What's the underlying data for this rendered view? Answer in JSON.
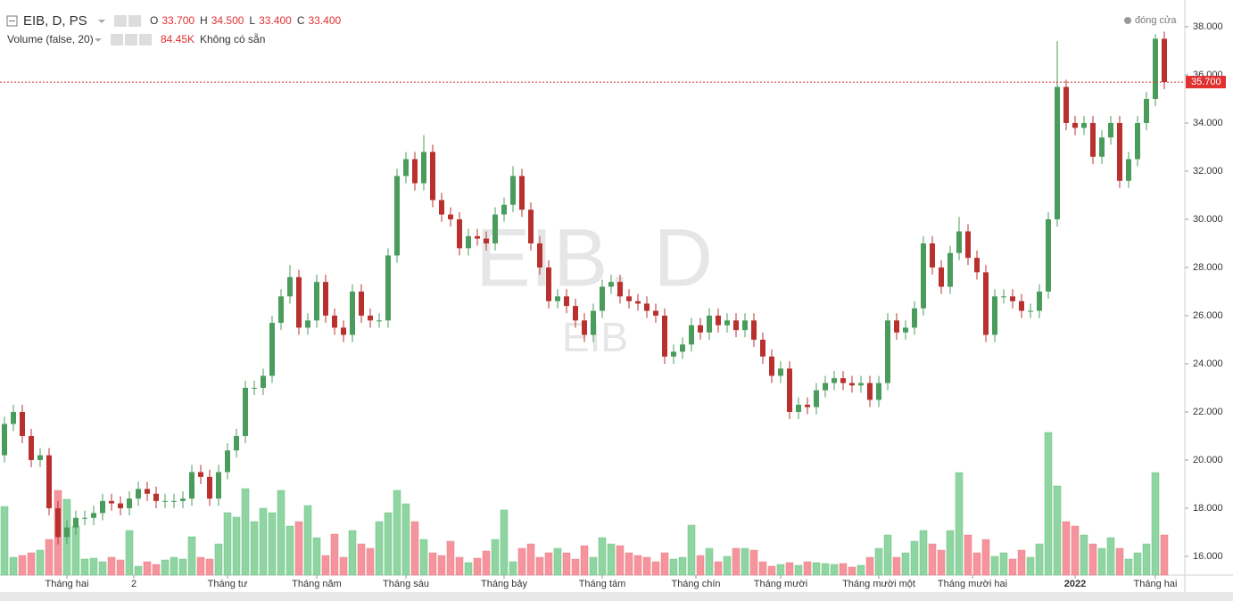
{
  "header": {
    "symbol": "EIB, D, PS",
    "ohlc": [
      {
        "key": "O",
        "text": "33.700"
      },
      {
        "key": "H",
        "text": "34.500"
      },
      {
        "key": "L",
        "text": "33.400"
      },
      {
        "key": "C",
        "text": "33.400"
      }
    ],
    "volume_label": "Volume (false, 20)",
    "volume_value": "84.45K",
    "volume_note": "Không có sẵn",
    "status": "đóng cửa"
  },
  "chart_data": {
    "type": "candlestick",
    "watermark": "EIB, D",
    "watermark_sub": "EIB",
    "up_color": "#4a9c5d",
    "down_color": "#b8312f",
    "volume_up_color": "#8fd5a2",
    "volume_down_color": "#f5949c",
    "ylim": [
      15.22,
      39.11
    ],
    "grid": false,
    "yticks": [
      {
        "value": 16,
        "label": "16.000"
      },
      {
        "value": 18,
        "label": "18.000"
      },
      {
        "value": 20,
        "label": "20.000"
      },
      {
        "value": 22,
        "label": "22.000"
      },
      {
        "value": 24,
        "label": "24.000"
      },
      {
        "value": 26,
        "label": "26.000"
      },
      {
        "value": 28,
        "label": "28.000"
      },
      {
        "value": 30,
        "label": "30.000"
      },
      {
        "value": 32,
        "label": "32.000"
      },
      {
        "value": 34,
        "label": "34.000"
      },
      {
        "value": 36,
        "label": "36.000"
      },
      {
        "value": 38,
        "label": "38.000"
      }
    ],
    "xticks": [
      {
        "value": 7,
        "label": "Tháng hai"
      },
      {
        "value": 14.5,
        "label": "2"
      },
      {
        "value": 25,
        "label": "Tháng tư"
      },
      {
        "value": 35,
        "label": "Tháng năm"
      },
      {
        "value": 45,
        "label": "Tháng sáu"
      },
      {
        "value": 56,
        "label": "Tháng bảy"
      },
      {
        "value": 67,
        "label": "Tháng tám"
      },
      {
        "value": 77.5,
        "label": "Tháng chín"
      },
      {
        "value": 87,
        "label": "Tháng mười"
      },
      {
        "value": 98,
        "label": "Tháng mười một"
      },
      {
        "value": 108.5,
        "label": "Tháng mười hai"
      },
      {
        "value": 120,
        "label": "2022"
      },
      {
        "value": 129,
        "label": "Tháng hai"
      }
    ],
    "last_price": {
      "value": 35.7,
      "label": "35.700"
    },
    "open": [
      20.2,
      21.5,
      22.0,
      21.0,
      20.0,
      20.2,
      18.0,
      16.8,
      17.2,
      17.6,
      17.6,
      17.8,
      18.3,
      18.2,
      18.0,
      18.4,
      18.8,
      18.6,
      18.3,
      18.3,
      18.3,
      18.4,
      19.5,
      19.3,
      18.4,
      19.5,
      20.4,
      21.0,
      23.0,
      23.0,
      23.5,
      25.7,
      26.8,
      27.6,
      25.5,
      25.8,
      27.4,
      26.0,
      25.5,
      25.2,
      27.0,
      26.0,
      25.8,
      25.8,
      28.5,
      31.8,
      32.5,
      31.5,
      32.8,
      30.8,
      30.2,
      30.0,
      28.8,
      29.3,
      29.2,
      29.0,
      30.2,
      30.6,
      31.8,
      30.4,
      29.0,
      28.0,
      26.6,
      26.8,
      26.4,
      25.8,
      25.2,
      26.2,
      27.2,
      27.4,
      26.8,
      26.6,
      26.5,
      26.2,
      26.0,
      24.3,
      24.5,
      24.8,
      25.6,
      25.3,
      26.0,
      25.6,
      25.8,
      25.4,
      25.8,
      25.0,
      24.3,
      23.5,
      23.8,
      22.0,
      22.3,
      22.2,
      22.9,
      23.2,
      23.4,
      23.2,
      23.1,
      23.2,
      22.5,
      23.2,
      25.8,
      25.3,
      25.5,
      26.3,
      29.0,
      28.0,
      27.2,
      28.6,
      29.5,
      28.4,
      27.8,
      25.2,
      26.8,
      26.8,
      26.6,
      26.2,
      26.2,
      27.0,
      30.0,
      35.5,
      34.0,
      33.8,
      34.0,
      32.6,
      33.4,
      34.0,
      31.6,
      32.5,
      34.0,
      35.0,
      37.5
    ],
    "high": [
      21.8,
      22.3,
      22.3,
      21.3,
      20.5,
      20.5,
      18.3,
      17.5,
      17.9,
      17.9,
      18.1,
      18.6,
      18.6,
      18.5,
      18.7,
      19.1,
      19.1,
      18.9,
      18.6,
      18.6,
      18.7,
      19.8,
      19.8,
      19.6,
      19.8,
      20.7,
      21.3,
      23.3,
      23.3,
      23.8,
      26.0,
      27.1,
      28.1,
      27.9,
      26.1,
      27.7,
      27.7,
      26.3,
      25.8,
      27.3,
      27.3,
      26.3,
      26.1,
      28.8,
      32.1,
      32.8,
      32.8,
      33.5,
      33.1,
      31.1,
      30.5,
      30.3,
      29.6,
      29.6,
      29.5,
      30.5,
      30.9,
      32.2,
      32.1,
      30.7,
      29.3,
      28.3,
      27.1,
      27.1,
      26.7,
      26.1,
      26.5,
      27.5,
      27.7,
      27.7,
      27.1,
      26.9,
      26.8,
      26.5,
      26.3,
      24.8,
      25.1,
      25.9,
      25.9,
      26.3,
      26.3,
      26.1,
      26.1,
      26.1,
      26.1,
      25.3,
      24.6,
      24.1,
      24.1,
      22.6,
      22.6,
      23.2,
      23.5,
      23.7,
      23.7,
      23.5,
      23.5,
      23.5,
      23.5,
      26.1,
      26.1,
      25.8,
      26.6,
      29.3,
      29.3,
      28.3,
      28.9,
      30.1,
      29.8,
      28.7,
      28.1,
      27.1,
      27.1,
      27.1,
      26.9,
      26.5,
      27.3,
      30.3,
      37.4,
      35.8,
      34.3,
      34.3,
      34.3,
      33.7,
      34.3,
      34.3,
      32.8,
      34.3,
      35.3,
      37.7,
      37.8
    ],
    "low": [
      19.9,
      21.2,
      20.7,
      19.7,
      19.7,
      17.7,
      16.5,
      16.5,
      16.9,
      17.3,
      17.3,
      17.5,
      17.9,
      17.7,
      17.7,
      18.1,
      18.3,
      18.0,
      18.0,
      18.0,
      18.0,
      18.1,
      19.0,
      18.1,
      18.1,
      19.2,
      20.1,
      20.7,
      22.7,
      22.7,
      23.2,
      25.4,
      26.5,
      25.2,
      25.2,
      25.5,
      25.7,
      25.2,
      24.9,
      24.9,
      25.7,
      25.5,
      25.5,
      25.5,
      28.2,
      31.5,
      31.2,
      31.2,
      30.5,
      29.9,
      29.7,
      28.5,
      28.5,
      28.9,
      28.7,
      28.7,
      29.9,
      30.3,
      30.1,
      28.7,
      27.7,
      26.3,
      26.3,
      26.1,
      25.5,
      24.9,
      24.9,
      25.9,
      26.9,
      26.5,
      26.3,
      26.2,
      25.9,
      25.7,
      24.0,
      24.0,
      24.2,
      24.5,
      25.0,
      25.0,
      25.3,
      25.3,
      25.1,
      25.1,
      24.7,
      24.0,
      23.2,
      23.2,
      21.7,
      21.7,
      21.9,
      21.9,
      22.6,
      22.9,
      22.9,
      22.8,
      22.8,
      22.2,
      22.2,
      22.9,
      25.0,
      25.0,
      25.2,
      26.0,
      27.7,
      26.9,
      26.9,
      28.3,
      28.1,
      27.5,
      24.9,
      24.9,
      26.5,
      26.3,
      25.9,
      25.9,
      25.9,
      26.7,
      29.7,
      33.7,
      33.5,
      33.5,
      32.3,
      32.3,
      33.1,
      31.3,
      31.3,
      32.2,
      33.7,
      34.7,
      35.4
    ],
    "close": [
      21.5,
      22.0,
      21.0,
      20.0,
      20.2,
      18.0,
      16.8,
      17.2,
      17.6,
      17.6,
      17.8,
      18.3,
      18.2,
      18.0,
      18.4,
      18.8,
      18.6,
      18.3,
      18.3,
      18.3,
      18.4,
      19.5,
      19.3,
      18.4,
      19.5,
      20.4,
      21.0,
      23.0,
      23.0,
      23.5,
      25.7,
      26.8,
      27.6,
      25.5,
      25.8,
      27.4,
      26.0,
      25.5,
      25.2,
      27.0,
      26.0,
      25.8,
      25.8,
      28.5,
      31.8,
      32.5,
      31.5,
      32.8,
      30.8,
      30.2,
      30.0,
      28.8,
      29.3,
      29.2,
      29.0,
      30.2,
      30.6,
      31.8,
      30.4,
      29.0,
      28.0,
      26.6,
      26.8,
      26.4,
      25.8,
      25.2,
      26.2,
      27.2,
      27.4,
      26.8,
      26.6,
      26.5,
      26.2,
      26.0,
      24.3,
      24.5,
      24.8,
      25.6,
      25.3,
      26.0,
      25.6,
      25.8,
      25.4,
      25.8,
      25.0,
      24.3,
      23.5,
      23.8,
      22.0,
      22.3,
      22.2,
      22.9,
      23.2,
      23.4,
      23.2,
      23.1,
      23.2,
      22.5,
      23.2,
      25.8,
      25.3,
      25.5,
      26.3,
      29.0,
      28.0,
      27.2,
      28.6,
      29.5,
      28.4,
      27.8,
      25.2,
      26.8,
      26.8,
      26.6,
      26.2,
      26.2,
      27.0,
      30.0,
      35.5,
      34.0,
      33.8,
      34.0,
      32.6,
      33.4,
      34.0,
      31.6,
      32.5,
      34.0,
      35.0,
      37.5,
      35.7
    ],
    "volume": [
      770,
      200,
      220,
      250,
      280,
      400,
      950,
      850,
      550,
      180,
      190,
      150,
      200,
      170,
      500,
      100,
      150,
      120,
      170,
      200,
      180,
      430,
      200,
      180,
      350,
      700,
      650,
      970,
      600,
      750,
      700,
      950,
      550,
      600,
      780,
      420,
      220,
      460,
      200,
      500,
      350,
      300,
      600,
      700,
      950,
      800,
      600,
      400,
      250,
      220,
      380,
      200,
      140,
      190,
      270,
      400,
      730,
      150,
      300,
      350,
      200,
      250,
      300,
      250,
      180,
      330,
      200,
      420,
      350,
      330,
      250,
      220,
      200,
      150,
      250,
      180,
      200,
      560,
      220,
      300,
      150,
      210,
      300,
      300,
      280,
      150,
      100,
      120,
      140,
      110,
      150,
      140,
      130,
      120,
      130,
      90,
      110,
      200,
      300,
      450,
      200,
      250,
      380,
      500,
      350,
      280,
      500,
      1150,
      450,
      250,
      400,
      210,
      250,
      180,
      280,
      200,
      350,
      1600,
      1000,
      600,
      550,
      450,
      350,
      300,
      420,
      300,
      180,
      250,
      350,
      1150,
      450
    ]
  }
}
